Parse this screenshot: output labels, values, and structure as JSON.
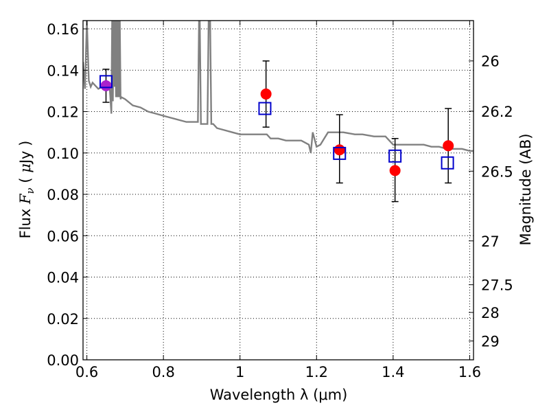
{
  "chart_data": {
    "type": "scatter",
    "xlabel": "Wavelength  λ (μm)",
    "ylabel": "Flux  F_ν  ( μJy )",
    "ylabel_parts": [
      "Flux ",
      "F",
      "ν",
      " ( ",
      "μ",
      "Jy )"
    ],
    "y2label": "Magnitude (AB)",
    "xlim": [
      0.59,
      1.61
    ],
    "ylim": [
      0,
      0.164
    ],
    "x_ticks": [
      0.6,
      0.8,
      1.0,
      1.2,
      1.4,
      1.6
    ],
    "x_tick_labels": [
      "0.6",
      "0.8",
      "1",
      "1.2",
      "1.4",
      "1.6"
    ],
    "y_ticks": [
      0,
      0.02,
      0.04,
      0.06,
      0.08,
      0.1,
      0.12,
      0.14,
      0.16
    ],
    "y_tick_labels": [
      "0.00",
      "0.02",
      "0.04",
      "0.06",
      "0.08",
      "0.10",
      "0.12",
      "0.14",
      "0.16"
    ],
    "y2_ticks": [
      {
        "label": "26",
        "flux": 0.1445
      },
      {
        "label": "26.2",
        "flux": 0.1202
      },
      {
        "label": "26.5",
        "flux": 0.0912
      },
      {
        "label": "27",
        "flux": 0.0575
      },
      {
        "label": "27.5",
        "flux": 0.0363
      },
      {
        "label": "28",
        "flux": 0.0229
      },
      {
        "label": "29",
        "flux": 0.0091
      }
    ],
    "grid": true,
    "colors": {
      "observed": "#ff0000",
      "model_points": "#0000cc",
      "model_line": "#808080",
      "errorbar": "#000000",
      "overlap": "#aa22cc"
    },
    "series": [
      {
        "marker": "filled circle",
        "points": [
          {
            "x": 0.65,
            "y": 0.1325,
            "ylo": 0.1245,
            "yhi": 0.1405
          },
          {
            "x": 1.068,
            "y": 0.1285,
            "ylo": 0.1125,
            "yhi": 0.1445
          },
          {
            "x": 1.26,
            "y": 0.1015,
            "ylo": 0.0855,
            "yhi": 0.1185
          },
          {
            "x": 1.405,
            "y": 0.0915,
            "ylo": 0.0765,
            "yhi": 0.107
          },
          {
            "x": 1.544,
            "y": 0.1035,
            "ylo": 0.0855,
            "yhi": 0.1215
          }
        ]
      },
      {
        "marker": "open square",
        "points": [
          {
            "x": 0.65,
            "y": 0.1345
          },
          {
            "x": 1.065,
            "y": 0.1215
          },
          {
            "x": 1.26,
            "y": 0.0998
          },
          {
            "x": 1.405,
            "y": 0.0985
          },
          {
            "x": 1.542,
            "y": 0.0952
          }
        ]
      },
      {
        "marker": "line",
        "x": [
          0.59,
          0.595,
          0.6,
          0.605,
          0.61,
          0.615,
          0.62,
          0.63,
          0.64,
          0.645,
          0.65,
          0.655,
          0.66,
          0.664,
          0.666,
          0.668,
          0.67,
          0.672,
          0.674,
          0.676,
          0.678,
          0.68,
          0.682,
          0.684,
          0.686,
          0.688,
          0.69,
          0.7,
          0.72,
          0.74,
          0.76,
          0.78,
          0.8,
          0.82,
          0.84,
          0.86,
          0.88,
          0.89,
          0.893,
          0.895,
          0.898,
          0.9,
          0.905,
          0.91,
          0.915,
          0.918,
          0.92,
          0.922,
          0.925,
          0.928,
          0.93,
          0.94,
          0.96,
          0.98,
          1.0,
          1.02,
          1.04,
          1.06,
          1.07,
          1.08,
          1.1,
          1.12,
          1.14,
          1.16,
          1.18,
          1.185,
          1.19,
          1.2,
          1.21,
          1.22,
          1.23,
          1.24,
          1.25,
          1.27,
          1.3,
          1.32,
          1.35,
          1.38,
          1.4,
          1.42,
          1.45,
          1.48,
          1.5,
          1.52,
          1.54,
          1.56,
          1.58,
          1.6,
          1.61
        ],
        "y": [
          0.144,
          0.131,
          0.164,
          0.135,
          0.132,
          0.134,
          0.133,
          0.131,
          0.132,
          0.131,
          0.131,
          0.132,
          0.131,
          0.119,
          0.164,
          0.125,
          0.164,
          0.132,
          0.164,
          0.127,
          0.164,
          0.127,
          0.164,
          0.127,
          0.164,
          0.126,
          0.127,
          0.126,
          0.123,
          0.122,
          0.12,
          0.119,
          0.118,
          0.117,
          0.116,
          0.115,
          0.115,
          0.115,
          0.164,
          0.164,
          0.114,
          0.114,
          0.114,
          0.114,
          0.114,
          0.164,
          0.164,
          0.164,
          0.114,
          0.114,
          0.114,
          0.112,
          0.111,
          0.11,
          0.109,
          0.109,
          0.109,
          0.109,
          0.109,
          0.107,
          0.107,
          0.106,
          0.106,
          0.106,
          0.104,
          0.1,
          0.11,
          0.103,
          0.104,
          0.107,
          0.11,
          0.11,
          0.11,
          0.11,
          0.109,
          0.109,
          0.108,
          0.108,
          0.104,
          0.104,
          0.104,
          0.104,
          0.103,
          0.103,
          0.102,
          0.102,
          0.102,
          0.101,
          0.101
        ]
      }
    ]
  }
}
